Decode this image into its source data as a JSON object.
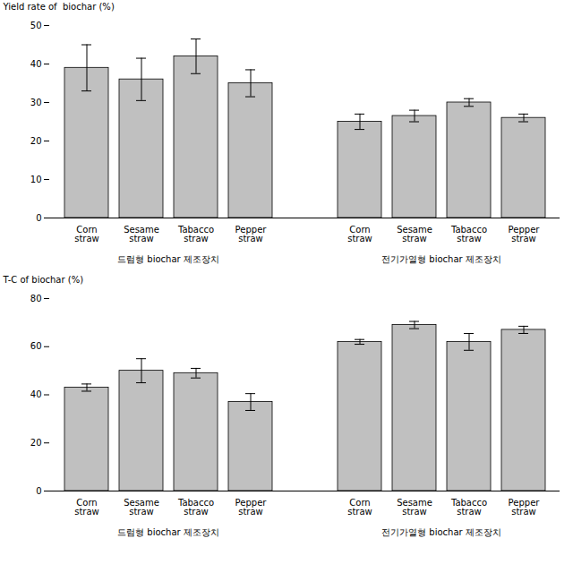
{
  "chart_data": [
    {
      "type": "bar",
      "ylabel": "Yield rate of  biochar (%)",
      "categories": [
        "Corn\nstraw",
        "Sesame\nstraw",
        "Tabacco\nstraw",
        "Pepper\nstraw",
        "Corn\nstraw",
        "Sesame\nstraw",
        "Tabacco\nstraw",
        "Pepper\nstraw"
      ],
      "values": [
        39.0,
        36.0,
        42.0,
        35.0,
        25.0,
        26.5,
        30.0,
        26.0
      ],
      "errors": [
        6.0,
        5.5,
        4.5,
        3.5,
        2.0,
        1.5,
        1.0,
        1.0
      ],
      "annotations": [
        "드럼형 biochar 제조장치",
        "전기가열형 biochar 제조장치"
      ],
      "color": "#c0c0c0",
      "ylim": [
        0,
        50
      ],
      "yticks": [
        0,
        10,
        20,
        30,
        40,
        50
      ]
    },
    {
      "type": "bar",
      "ylabel": "T-C of biochar (%)",
      "categories": [
        "Corn\nstraw",
        "Sesame\nstraw",
        "Tabacco\nstraw",
        "Pepper\nstraw",
        "Corn\nstraw",
        "Sesame\nstraw",
        "Tabacco\nstraw",
        "Pepper\nstraw"
      ],
      "values": [
        43.0,
        50.0,
        49.0,
        37.0,
        62.0,
        69.0,
        62.0,
        67.0
      ],
      "errors": [
        1.5,
        5.0,
        2.0,
        3.5,
        1.0,
        1.5,
        3.5,
        1.5
      ],
      "annotations": [
        "드럼형 biochar 제조장치",
        "전기가열형 biochar 제조장치"
      ],
      "color": "#c0c0c0",
      "ylim": [
        0,
        80
      ],
      "yticks": [
        0,
        20,
        40,
        60,
        80
      ]
    }
  ]
}
